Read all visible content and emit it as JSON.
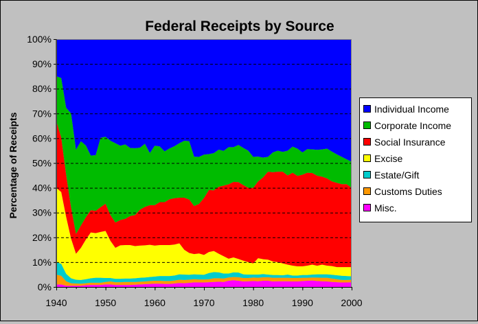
{
  "chart_data": {
    "type": "area",
    "stacked": true,
    "normalized": true,
    "title": "Federal Receipts by Source",
    "ylabel": "Percentage of Receipts",
    "xlabel": "",
    "x": [
      1940,
      1941,
      1942,
      1943,
      1944,
      1945,
      1946,
      1947,
      1948,
      1949,
      1950,
      1951,
      1952,
      1953,
      1954,
      1955,
      1956,
      1957,
      1958,
      1959,
      1960,
      1961,
      1962,
      1963,
      1964,
      1965,
      1966,
      1967,
      1968,
      1969,
      1970,
      1971,
      1972,
      1973,
      1974,
      1975,
      1976,
      1977,
      1978,
      1979,
      1980,
      1981,
      1982,
      1983,
      1984,
      1985,
      1986,
      1987,
      1988,
      1989,
      1990,
      1991,
      1992,
      1993,
      1994,
      1995,
      1996,
      1997,
      1998,
      1999,
      2000
    ],
    "xlim": [
      1940,
      2000
    ],
    "ylim": [
      0,
      100
    ],
    "x_ticks": [
      "1940",
      "1950",
      "1960",
      "1970",
      "1980",
      "1990",
      "2000"
    ],
    "y_ticks": [
      "0%",
      "10%",
      "20%",
      "30%",
      "40%",
      "50%",
      "60%",
      "70%",
      "80%",
      "90%",
      "100%"
    ],
    "legend_position": "right",
    "grid": "horizontal dashed",
    "series": [
      {
        "name": "Misc.",
        "color": "#ff00ff",
        "values": [
          1.0,
          1.0,
          0.5,
          0.5,
          0.5,
          0.5,
          0.7,
          0.8,
          0.8,
          0.8,
          1.0,
          1.0,
          0.8,
          0.8,
          0.8,
          0.8,
          0.9,
          1.0,
          1.1,
          1.2,
          1.3,
          1.3,
          1.2,
          1.2,
          1.4,
          1.6,
          1.5,
          1.7,
          1.8,
          1.8,
          1.8,
          1.9,
          2.0,
          2.1,
          2.0,
          2.5,
          2.7,
          2.5,
          2.2,
          2.3,
          2.4,
          2.3,
          2.5,
          2.5,
          2.2,
          2.3,
          2.3,
          2.3,
          2.2,
          2.2,
          2.4,
          2.5,
          2.6,
          2.4,
          2.3,
          2.2,
          2.0,
          1.9,
          1.8,
          1.8,
          1.9
        ]
      },
      {
        "name": "Customs Duties",
        "color": "#ff9900",
        "values": [
          4.0,
          3.5,
          1.8,
          1.0,
          0.9,
          0.8,
          0.8,
          0.9,
          0.9,
          0.9,
          1.0,
          1.2,
          1.1,
          1.1,
          1.2,
          1.2,
          1.1,
          1.1,
          1.1,
          1.2,
          1.2,
          1.2,
          1.2,
          1.2,
          1.2,
          1.3,
          1.3,
          1.3,
          1.3,
          1.2,
          1.2,
          1.2,
          1.5,
          1.4,
          1.4,
          1.3,
          1.3,
          1.4,
          1.4,
          1.3,
          1.4,
          1.4,
          1.4,
          1.4,
          1.5,
          1.4,
          1.4,
          1.4,
          1.4,
          1.4,
          1.3,
          1.2,
          1.2,
          1.4,
          1.4,
          1.5,
          1.4,
          1.2,
          1.0,
          1.0,
          1.0
        ]
      },
      {
        "name": "Estate/Gift",
        "color": "#00cccc",
        "values": [
          5.0,
          4.8,
          3.0,
          2.0,
          1.5,
          1.5,
          1.6,
          1.8,
          2.0,
          2.0,
          1.6,
          1.4,
          1.4,
          1.4,
          1.4,
          1.4,
          1.5,
          1.6,
          1.6,
          1.6,
          1.7,
          1.9,
          2.0,
          2.0,
          2.0,
          2.2,
          2.2,
          2.0,
          1.9,
          2.0,
          1.9,
          2.5,
          2.5,
          2.4,
          2.0,
          1.6,
          1.9,
          1.9,
          1.5,
          1.4,
          1.2,
          1.3,
          1.3,
          1.1,
          1.1,
          1.1,
          1.0,
          1.3,
          1.0,
          1.0,
          1.1,
          1.1,
          1.2,
          1.3,
          1.4,
          1.4,
          1.5,
          1.6,
          1.7,
          1.6,
          1.4
        ]
      },
      {
        "name": "Excise",
        "color": "#ffff00",
        "values": [
          30.0,
          29.0,
          23.0,
          16.0,
          10.5,
          13.0,
          16.0,
          18.5,
          18.0,
          18.5,
          19.0,
          15.0,
          12.5,
          13.5,
          13.5,
          13.5,
          13.0,
          13.0,
          13.0,
          13.0,
          12.5,
          12.5,
          12.5,
          12.5,
          12.5,
          12.5,
          10.0,
          9.0,
          8.0,
          8.5,
          8.0,
          8.5,
          8.5,
          7.5,
          7.0,
          6.0,
          6.0,
          5.5,
          5.5,
          5.0,
          4.5,
          6.6,
          6.0,
          6.0,
          5.5,
          5.2,
          4.8,
          4.0,
          4.0,
          3.7,
          3.5,
          3.8,
          4.0,
          3.5,
          3.9,
          3.5,
          3.5,
          3.3,
          3.5,
          3.6,
          3.7
        ]
      },
      {
        "name": "Social Insurance",
        "color": "#ff0000",
        "values": [
          27.0,
          22.0,
          17.0,
          12.5,
          8.0,
          9.0,
          9.0,
          9.0,
          9.0,
          10.0,
          11.0,
          10.4,
          10.2,
          10.2,
          10.6,
          11.7,
          12.5,
          14.5,
          15.5,
          16.0,
          16.3,
          17.3,
          17.3,
          18.5,
          18.7,
          18.4,
          21.0,
          22.0,
          19.0,
          20.0,
          23.0,
          25.0,
          24.5,
          27.0,
          28.5,
          30.0,
          30.5,
          31.0,
          30.5,
          30.0,
          30.5,
          31.0,
          33.0,
          35.5,
          36.0,
          36.5,
          37.0,
          36.0,
          37.5,
          36.5,
          37.0,
          37.5,
          37.0,
          36.5,
          35.5,
          35.2,
          34.2,
          34.0,
          33.5,
          33.5,
          32.0
        ]
      },
      {
        "name": "Corporate Income",
        "color": "#00bb00",
        "values": [
          18.0,
          24.0,
          27.0,
          38.0,
          34.0,
          34.0,
          29.0,
          22.0,
          22.5,
          28.0,
          27.0,
          30.0,
          32.0,
          30.0,
          30.0,
          27.5,
          27.0,
          25.0,
          25.5,
          21.0,
          24.0,
          22.5,
          20.5,
          20.5,
          21.0,
          22.0,
          23.0,
          24.0,
          19.5,
          19.0,
          17.5,
          14.5,
          15.0,
          15.0,
          14.0,
          15.0,
          14.0,
          15.0,
          15.0,
          15.0,
          12.5,
          10.0,
          8.0,
          6.0,
          8.0,
          8.5,
          8.0,
          10.0,
          10.5,
          11.0,
          9.0,
          9.5,
          9.5,
          10.5,
          11.0,
          12.0,
          12.0,
          11.5,
          11.0,
          10.0,
          10.5
        ]
      },
      {
        "name": "Individual Income",
        "color": "#0000ff",
        "values": [
          15.0,
          15.7,
          27.7,
          30.0,
          44.6,
          41.2,
          42.9,
          47.0,
          46.8,
          39.8,
          39.4,
          41.0,
          42.0,
          43.0,
          42.5,
          43.9,
          44.0,
          43.8,
          42.2,
          46.0,
          43.0,
          43.3,
          45.3,
          44.1,
          43.2,
          42.0,
          41.0,
          42.0,
          46.5,
          47.5,
          46.6,
          46.4,
          46.0,
          44.6,
          45.1,
          43.6,
          43.6,
          42.7,
          43.9,
          45.0,
          47.5,
          47.4,
          47.8,
          47.5,
          45.7,
          45.0,
          45.5,
          45.0,
          43.4,
          44.2,
          45.7,
          44.4,
          44.5,
          44.9,
          44.5,
          44.2,
          45.4,
          46.5,
          47.5,
          48.5,
          49.5
        ]
      }
    ]
  }
}
